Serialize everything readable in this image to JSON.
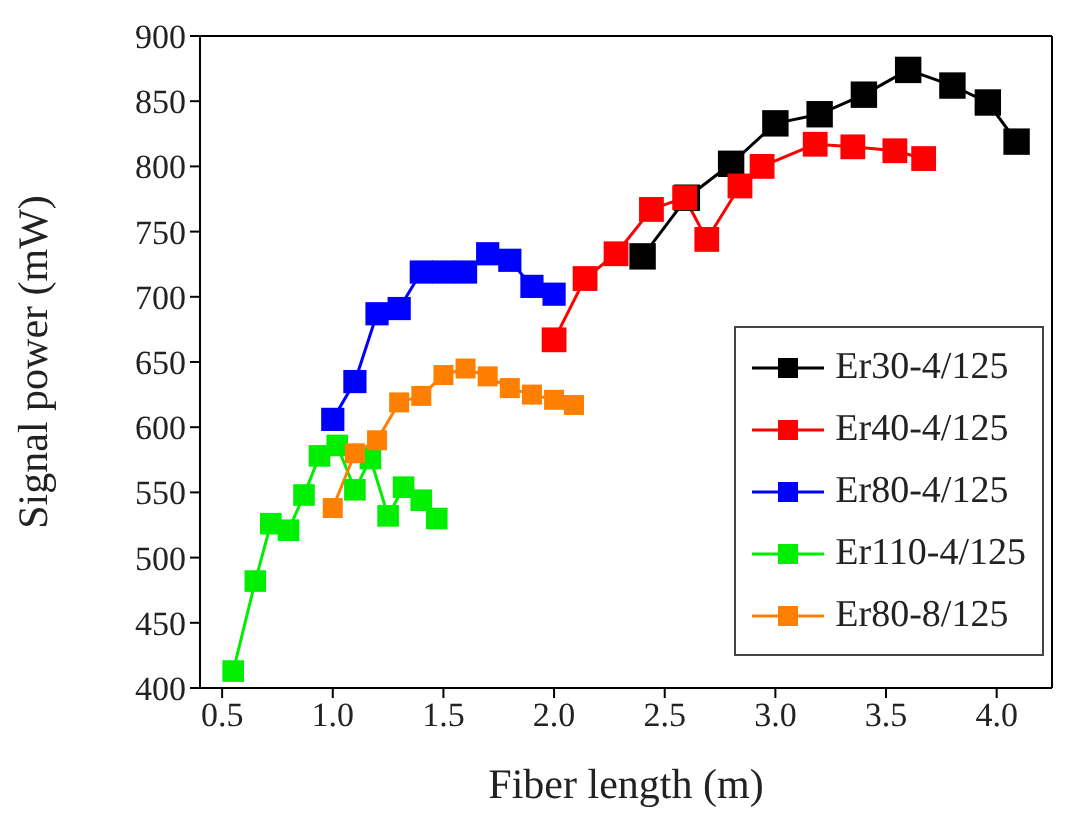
{
  "chart_data": {
    "type": "line",
    "xlabel": "Fiber length (m)",
    "ylabel": "Signal power (mW)",
    "xlim": [
      0.4,
      4.25
    ],
    "xticks": [
      {
        "value": 0.5,
        "label": "0.5"
      },
      {
        "value": 1,
        "label": "1.0"
      },
      {
        "value": 1.5,
        "label": "1.5"
      },
      {
        "value": 2,
        "label": "2.0"
      },
      {
        "value": 2.5,
        "label": "2.5"
      },
      {
        "value": 3,
        "label": "3.0"
      },
      {
        "value": 3.5,
        "label": "3.5"
      },
      {
        "value": 4,
        "label": "4.0"
      }
    ],
    "ylim": [
      400,
      900
    ],
    "yticks": [
      400,
      450,
      500,
      550,
      600,
      650,
      700,
      750,
      800,
      850,
      900
    ],
    "legend": "right",
    "marker": "square",
    "line_style": "solid",
    "series": [
      {
        "name": "Er30-4/125",
        "color": "#000000",
        "x": [
          2.4,
          2.6,
          2.8,
          3.0,
          3.2,
          3.4,
          3.6,
          3.8,
          3.96,
          4.09
        ],
        "values": [
          731,
          776,
          802,
          833,
          840,
          855,
          874,
          862,
          849,
          819
        ]
      },
      {
        "name": "Er40-4/125",
        "color": "#ff0000",
        "x": [
          2.0,
          2.14,
          2.28,
          2.44,
          2.59,
          2.69,
          2.84,
          2.94,
          3.18,
          3.35,
          3.54,
          3.67
        ],
        "values": [
          667,
          714,
          733,
          767,
          776,
          744,
          785,
          800,
          817,
          815,
          812,
          806
        ]
      },
      {
        "name": "Er80-4/125",
        "color": "#0000ff",
        "x": [
          1.0,
          1.1,
          1.2,
          1.3,
          1.4,
          1.5,
          1.6,
          1.7,
          1.8,
          1.9,
          2.0
        ],
        "values": [
          606,
          635,
          687,
          691,
          719,
          719,
          719,
          733,
          728,
          708,
          702
        ]
      },
      {
        "name": "Er110-4/125",
        "color": "#00ee00",
        "x": [
          0.55,
          0.65,
          0.72,
          0.8,
          0.87,
          0.94,
          1.02,
          1.1,
          1.17,
          1.25,
          1.32,
          1.4,
          1.47
        ],
        "values": [
          413,
          482,
          526,
          521,
          548,
          578,
          586,
          552,
          576,
          532,
          554,
          544,
          530
        ]
      },
      {
        "name": "Er80-8/125",
        "color": "#ff8000",
        "x": [
          1.0,
          1.1,
          1.2,
          1.3,
          1.4,
          1.5,
          1.6,
          1.7,
          1.8,
          1.9,
          2.0,
          2.09
        ],
        "values": [
          538,
          580,
          590,
          619,
          624,
          640,
          645,
          639,
          630,
          625,
          621,
          617
        ]
      }
    ]
  }
}
